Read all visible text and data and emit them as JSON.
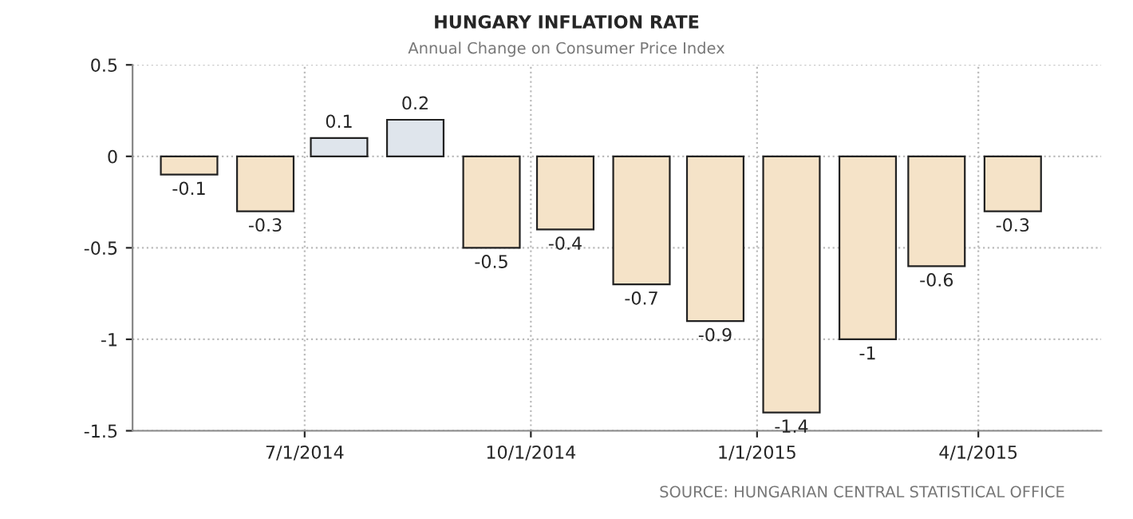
{
  "chart_data": {
    "type": "bar",
    "title": "HUNGARY INFLATION RATE",
    "subtitle": "Annual Change on Consumer Price Index",
    "x": [
      "2014-05-15",
      "2014-06-15",
      "2014-07-15",
      "2014-08-15",
      "2014-09-15",
      "2014-10-15",
      "2014-11-15",
      "2014-12-15",
      "2015-01-15",
      "2015-02-15",
      "2015-03-15",
      "2015-04-15"
    ],
    "values": [
      -0.1,
      -0.3,
      0.1,
      0.2,
      -0.5,
      -0.4,
      -0.7,
      -0.9,
      -1.4,
      -1,
      -0.6,
      -0.3
    ],
    "colors": [
      "#f5e3c8",
      "#f5e3c8",
      "#dfe5ec",
      "#dfe5ec",
      "#f5e3c8",
      "#f5e3c8",
      "#f5e3c8",
      "#f5e3c8",
      "#f5e3c8",
      "#f5e3c8",
      "#f5e3c8",
      "#f5e3c8"
    ],
    "data_labels": true,
    "xlim": [
      "2014-04-22",
      "2015-05-21"
    ],
    "xticks": [
      {
        "value": "2014-07-01",
        "label": "7/1/2014"
      },
      {
        "value": "2014-10-01",
        "label": "10/1/2014"
      },
      {
        "value": "2015-01-01",
        "label": "1/1/2015"
      },
      {
        "value": "2015-04-01",
        "label": "4/1/2015"
      }
    ],
    "ylim": [
      -1.5,
      0.5
    ],
    "yticks": [
      -1.5,
      -1,
      -0.5,
      0,
      0.5
    ],
    "grid": true,
    "annotations": [
      "SOURCE: HUNGARIAN CENTRAL STATISTICAL OFFICE"
    ]
  }
}
